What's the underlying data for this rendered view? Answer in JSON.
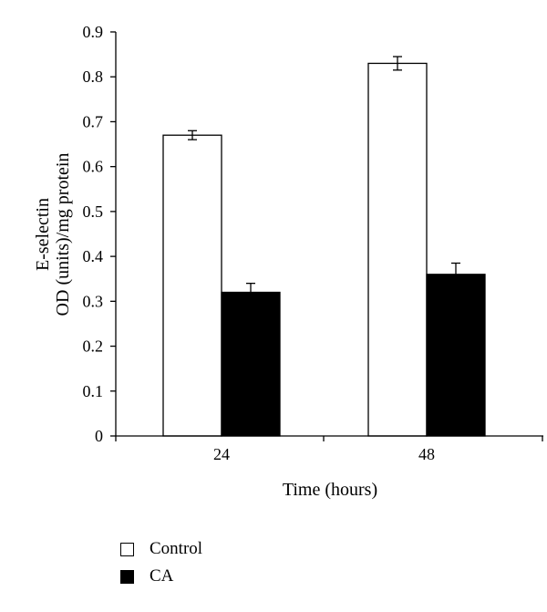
{
  "chart_data": {
    "type": "bar",
    "categories": [
      "24",
      "48"
    ],
    "series": [
      {
        "name": "Control",
        "values": [
          0.67,
          0.83
        ],
        "errors": [
          0.01,
          0.015
        ],
        "color": "#ffffff"
      },
      {
        "name": "CA",
        "values": [
          0.32,
          0.36
        ],
        "errors": [
          0.02,
          0.025
        ],
        "color": "#000000"
      }
    ],
    "title": "",
    "xlabel": "Time (hours)",
    "ylabel": [
      "E-selectin",
      "OD (units)/mg protein"
    ],
    "ylim": [
      0,
      0.9
    ],
    "yticks": [
      "0",
      "0.1",
      "0.2",
      "0.3",
      "0.4",
      "0.5",
      "0.6",
      "0.7",
      "0.8",
      "0.9"
    ],
    "grid": false,
    "legend": "bottom-left"
  }
}
